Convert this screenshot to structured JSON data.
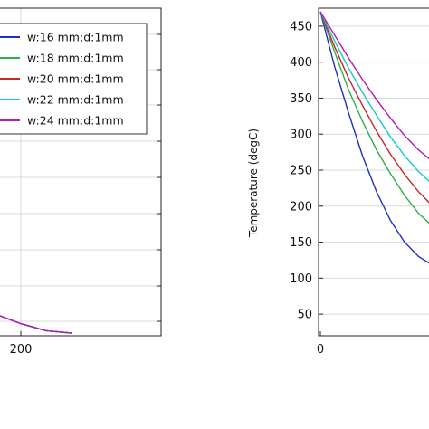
{
  "chart_data": [
    {
      "type": "line",
      "series": [
        {
          "name": "w:16 mm;d:1mm",
          "color": "#1f2fbf",
          "x": [
            0,
            40,
            80,
            120,
            160,
            200,
            240,
            280
          ],
          "y": [
            null,
            null,
            null,
            null,
            30,
            22,
            16,
            14
          ]
        },
        {
          "name": "w:18 mm;d:1mm",
          "color": "#2fae4a",
          "x": [
            0,
            40,
            80,
            120,
            160,
            200,
            240,
            280
          ],
          "y": [
            null,
            null,
            null,
            null,
            30,
            22,
            16,
            14
          ]
        },
        {
          "name": "w:20 mm;d:1mm",
          "color": "#c62828",
          "x": [
            0,
            40,
            80,
            120,
            160,
            200,
            240,
            280
          ],
          "y": [
            null,
            null,
            null,
            null,
            30,
            22,
            16,
            14
          ]
        },
        {
          "name": "w:22 mm;d:1mm",
          "color": "#19c9c9",
          "x": [
            0,
            40,
            80,
            120,
            160,
            200,
            240,
            280
          ],
          "y": [
            null,
            null,
            null,
            null,
            30,
            22,
            16,
            14
          ]
        },
        {
          "name": "w:24 mm;d:1mm",
          "color": "#b01ab5",
          "x": [
            0,
            40,
            80,
            120,
            160,
            200,
            240,
            280
          ],
          "y": [
            null,
            null,
            null,
            null,
            30,
            22,
            16,
            14
          ]
        }
      ],
      "xticks": [
        "200"
      ],
      "legend": "top-right",
      "grid": true
    },
    {
      "type": "line",
      "ylabel": "Temperature (degC)",
      "yticks": [
        "50",
        "100",
        "150",
        "200",
        "250",
        "300",
        "350",
        "400",
        "450"
      ],
      "xticks": [
        "0"
      ],
      "ylim": [
        20,
        475
      ],
      "grid": true,
      "series": [
        {
          "color": "#1f2fbf",
          "x": [
            0,
            1,
            2,
            3,
            4,
            5,
            6,
            7,
            8,
            9
          ],
          "y": [
            470,
            395,
            330,
            270,
            220,
            180,
            150,
            130,
            118,
            112
          ]
        },
        {
          "color": "#2fae4a",
          "x": [
            0,
            1,
            2,
            3,
            4,
            5,
            6,
            7,
            8,
            9
          ],
          "y": [
            470,
            415,
            362,
            318,
            278,
            245,
            215,
            190,
            172,
            162
          ]
        },
        {
          "color": "#c62828",
          "x": [
            0,
            1,
            2,
            3,
            4,
            5,
            6,
            7,
            8,
            9
          ],
          "y": [
            470,
            422,
            378,
            340,
            304,
            272,
            244,
            220,
            200,
            188
          ]
        },
        {
          "color": "#19c9c9",
          "x": [
            0,
            1,
            2,
            3,
            4,
            5,
            6,
            7,
            8,
            9
          ],
          "y": [
            470,
            430,
            392,
            358,
            326,
            296,
            270,
            248,
            230,
            220
          ]
        },
        {
          "color": "#b01ab5",
          "x": [
            0,
            1,
            2,
            3,
            4,
            5,
            6,
            7,
            8,
            9
          ],
          "y": [
            470,
            438,
            406,
            376,
            348,
            322,
            298,
            278,
            262,
            252
          ]
        }
      ]
    }
  ]
}
